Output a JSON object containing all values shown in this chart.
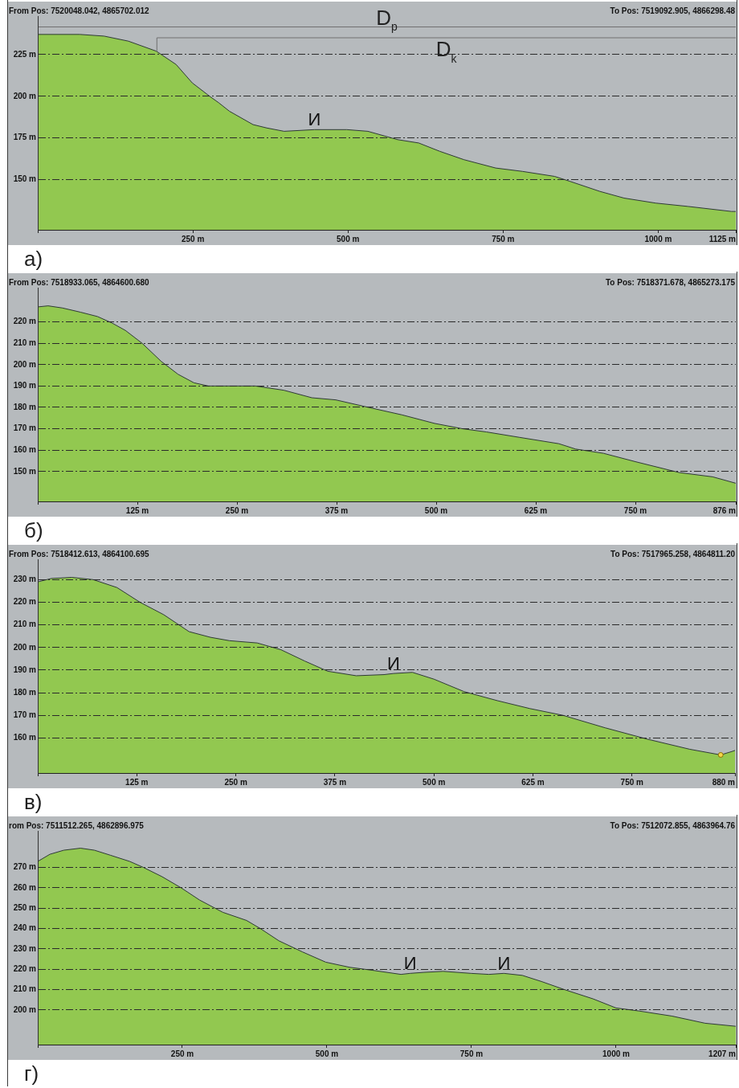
{
  "chart_data": [
    {
      "type": "area",
      "title": "а)",
      "annotations": [
        "From Pos: 7520048.042, 4865702.012",
        "To Pos: 7519092.905, 4866298.48",
        {
          "text": "И",
          "x": 446,
          "y": 180
        }
      ],
      "x": [
        0,
        68,
        107,
        146,
        191,
        223,
        249,
        277,
        292,
        309,
        347,
        369,
        397,
        446,
        498,
        532,
        580,
        614,
        648,
        687,
        738,
        781,
        833,
        858,
        906,
        945,
        996,
        1048,
        1118,
        1125
      ],
      "series": [
        {
          "color": "#92c850",
          "values": [
            237,
            237,
            236,
            233,
            227,
            219,
            208,
            200,
            196,
            191,
            183,
            181,
            179,
            180,
            180,
            179,
            174,
            172,
            167,
            162,
            157,
            155,
            152,
            149,
            143,
            139,
            136,
            134,
            131,
            131
          ]
        },
        {
          "type": "line",
          "name": "D$_{p}$",
          "color": "#707070",
          "x": [
            0,
            1125
          ],
          "values": [
            241.5,
            241.5
          ]
        },
        {
          "type": "line",
          "name": "D$_{k}$",
          "color": "#707070",
          "x": [
            192,
            192,
            1125
          ],
          "values": [
            227,
            235,
            235
          ]
        }
      ],
      "xlim": [
        0,
        1125
      ],
      "ylim": [
        120,
        248
      ],
      "xticks": [
        {
          "value": 0,
          "label": null
        },
        {
          "value": 250,
          "label": "250 m"
        },
        {
          "value": 500,
          "label": "500 m"
        },
        {
          "value": 750,
          "label": "750 m"
        },
        {
          "value": 1000,
          "label": "1000 m"
        },
        {
          "value": 1125,
          "label": "1125 m"
        }
      ],
      "yticks": [
        {
          "value": 150,
          "label": "150 m"
        },
        {
          "value": 175,
          "label": "175 m"
        },
        {
          "value": 200,
          "label": "200 m"
        },
        {
          "value": 225,
          "label": "225 m"
        }
      ],
      "grid": "y"
    },
    {
      "type": "area",
      "title": "б)",
      "annotations": [
        "From Pos: 7518933.065, 4864600.680",
        "To Pos: 7518371.678, 4865273.175"
      ],
      "x": [
        0,
        13,
        31,
        54,
        75,
        93,
        110,
        131,
        155,
        176,
        196,
        214,
        273,
        309,
        344,
        374,
        415,
        457,
        498,
        533,
        563,
        604,
        654,
        675,
        710,
        751,
        805,
        847,
        876
      ],
      "series": [
        {
          "color": "#92c850",
          "values": [
            227,
            227.5,
            226.5,
            224.5,
            222.5,
            219.5,
            216,
            210,
            201.5,
            195.5,
            191.5,
            190,
            190,
            188,
            184.5,
            183.5,
            180,
            176.5,
            172.5,
            170,
            168.5,
            166,
            163,
            160.5,
            158.5,
            154.5,
            149.5,
            147.5,
            144.5
          ]
        }
      ],
      "xlim": [
        0,
        876
      ],
      "ylim": [
        136,
        236
      ],
      "xticks": [
        {
          "value": 0,
          "label": null
        },
        {
          "value": 125,
          "label": "125 m"
        },
        {
          "value": 250,
          "label": "250 m"
        },
        {
          "value": 375,
          "label": "375 m"
        },
        {
          "value": 500,
          "label": "500 m"
        },
        {
          "value": 625,
          "label": "625 m"
        },
        {
          "value": 750,
          "label": "750 m"
        },
        {
          "value": 876,
          "label": "876 m"
        }
      ],
      "yticks": [
        {
          "value": 150,
          "label": "150 m"
        },
        {
          "value": 160,
          "label": "160 m"
        },
        {
          "value": 170,
          "label": "170 m"
        },
        {
          "value": 180,
          "label": "180 m"
        },
        {
          "value": 190,
          "label": "190 m"
        },
        {
          "value": 200,
          "label": "200 m"
        },
        {
          "value": 210,
          "label": "210 m"
        },
        {
          "value": 220,
          "label": "220 m"
        }
      ],
      "grid": "y"
    },
    {
      "type": "area",
      "title": "в)",
      "annotations": [
        "From Pos: 7518412.613, 4864100.695",
        "To Pos: 7517965.258, 4864811.20",
        {
          "text": "И",
          "x": 449,
          "y": 188.5
        }
      ],
      "x": [
        0,
        17,
        43,
        70,
        100,
        129,
        159,
        191,
        218,
        242,
        277,
        307,
        337,
        366,
        402,
        437,
        449,
        473,
        500,
        538,
        580,
        621,
        663,
        716,
        769,
        823,
        862,
        876,
        880
      ],
      "series": [
        {
          "color": "#92c850",
          "values": [
            229,
            230.5,
            231,
            230,
            226.5,
            220,
            214.5,
            207,
            204.5,
            203,
            202,
            199,
            194,
            189.5,
            187.5,
            188,
            188.5,
            189,
            186,
            180.5,
            176.5,
            173,
            170,
            164.5,
            159.5,
            155,
            152.5,
            154,
            154.5
          ]
        },
        {
          "type": "scatter",
          "marker": "circle",
          "color": "#f4d64a",
          "x": [
            862
          ],
          "values": [
            152.5
          ]
        }
      ],
      "xlim": [
        0,
        880
      ],
      "ylim": [
        144.5,
        239
      ],
      "xticks": [
        {
          "value": 0,
          "label": null
        },
        {
          "value": 125,
          "label": "125 m"
        },
        {
          "value": 250,
          "label": "250 m"
        },
        {
          "value": 375,
          "label": "375 m"
        },
        {
          "value": 500,
          "label": "500 m"
        },
        {
          "value": 625,
          "label": "625 m"
        },
        {
          "value": 750,
          "label": "750 m"
        },
        {
          "value": 880,
          "label": "880 m"
        }
      ],
      "yticks": [
        {
          "value": 160,
          "label": "160 m"
        },
        {
          "value": 170,
          "label": "170 m"
        },
        {
          "value": 180,
          "label": "180 m"
        },
        {
          "value": 190,
          "label": "190 m"
        },
        {
          "value": 200,
          "label": "200 m"
        },
        {
          "value": 210,
          "label": "210 m"
        },
        {
          "value": 220,
          "label": "220 m"
        },
        {
          "value": 230,
          "label": "230 m"
        }
      ],
      "grid": "y"
    },
    {
      "type": "area",
      "title": "г)",
      "annotations": [
        "rom Pos: 7511512.265, 4862896.975",
        "To Pos: 7512072.855, 4863964.76",
        {
          "text": "И",
          "x": 644,
          "y": 218
        },
        {
          "text": "И",
          "x": 806,
          "y": 218
        }
      ],
      "x": [
        0,
        21,
        45,
        74,
        98,
        126,
        159,
        183,
        215,
        248,
        280,
        320,
        361,
        385,
        417,
        458,
        498,
        539,
        579,
        628,
        644,
        668,
        701,
        749,
        780,
        806,
        838,
        871,
        911,
        960,
        1000,
        1040,
        1097,
        1154,
        1207
      ],
      "series": [
        {
          "color": "#92c850",
          "values": [
            273,
            276.5,
            278.5,
            279.5,
            278.5,
            276,
            273,
            270,
            265.5,
            260,
            254,
            248,
            244,
            240,
            234,
            228.5,
            223.5,
            221,
            219.5,
            217.5,
            218,
            218.5,
            219,
            218,
            217.5,
            218,
            217,
            214,
            210,
            205.5,
            201,
            199.5,
            197,
            193.5,
            192
          ]
        }
      ],
      "xlim": [
        0,
        1207
      ],
      "ylim": [
        183,
        288
      ],
      "xticks": [
        {
          "value": 0,
          "label": null
        },
        {
          "value": 250,
          "label": "250 m"
        },
        {
          "value": 500,
          "label": "500 m"
        },
        {
          "value": 750,
          "label": "750 m"
        },
        {
          "value": 1000,
          "label": "1000 m"
        },
        {
          "value": 1207,
          "label": "1207 m"
        }
      ],
      "yticks": [
        {
          "value": 200,
          "label": "200 m"
        },
        {
          "value": 210,
          "label": "210 m"
        },
        {
          "value": 220,
          "label": "220 m"
        },
        {
          "value": 230,
          "label": "230 m"
        },
        {
          "value": 240,
          "label": "240 m"
        },
        {
          "value": 250,
          "label": "250 m"
        },
        {
          "value": 260,
          "label": "260 m"
        },
        {
          "value": 270,
          "label": "270 m"
        }
      ],
      "grid": "y"
    }
  ]
}
